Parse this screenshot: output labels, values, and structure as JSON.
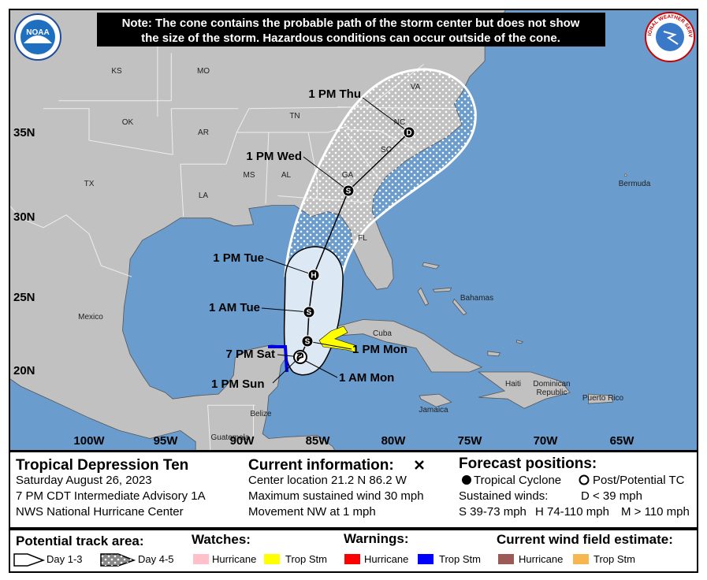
{
  "header": {
    "note_line1": "Note: The cone contains the probable path of the storm center but does not show",
    "note_line2": "the size of the storm. Hazardous conditions can occur outside of the cone.",
    "noaa_logo": "NOAA",
    "nws_logo": "NATIONAL WEATHER SERVICE"
  },
  "map": {
    "lon_labels": [
      "100W",
      "95W",
      "90W",
      "85W",
      "80W",
      "75W",
      "70W",
      "65W"
    ],
    "lat_labels": [
      "35N",
      "30N",
      "25N",
      "20N"
    ],
    "places": [
      "KS",
      "MO",
      "OK",
      "AR",
      "TN",
      "MS",
      "AL",
      "GA",
      "SC",
      "NC",
      "VA",
      "LA",
      "TX",
      "FL",
      "Mexico",
      "Bermuda",
      "Bahamas",
      "Cuba",
      "Jamaica",
      "Haiti",
      "Dominican",
      "Republic",
      "Puerto Rico",
      "Belize",
      "Guatemala"
    ],
    "forecast_points": [
      {
        "label": "1 PM Thu",
        "symbol": "D"
      },
      {
        "label": "1 PM Wed",
        "symbol": "S"
      },
      {
        "label": "1 PM Tue",
        "symbol": "H"
      },
      {
        "label": "1 AM Tue",
        "symbol": "S"
      },
      {
        "label": "1 PM Mon",
        "symbol": "S"
      },
      {
        "label": "1 AM Mon"
      },
      {
        "label": "1 PM Sun"
      },
      {
        "label": "7 PM Sat"
      }
    ]
  },
  "info": {
    "storm_name": "Tropical Depression Ten",
    "date": "Saturday August 26, 2023",
    "advisory": "7 PM CDT Intermediate Advisory 1A",
    "center": "NWS National Hurricane Center",
    "current_title": "Current information:",
    "location": "Center location 21.2 N 86.2 W",
    "wind": "Maximum sustained wind 30 mph",
    "movement": "Movement NW at 1 mph",
    "forecast_title": "Forecast positions:",
    "tropical_cyclone": "Tropical Cyclone",
    "post_tc": "Post/Potential TC",
    "sustained_winds": "Sustained winds:",
    "d": "D < 39 mph",
    "s": "S 39-73 mph",
    "h": "H 74-110 mph",
    "m": "M > 110 mph"
  },
  "legend": {
    "track_title": "Potential track area:",
    "day13": "Day 1-3",
    "day45": "Day 4-5",
    "watches_title": "Watches:",
    "watch_hurricane": "Hurricane",
    "watch_tropstm": "Trop Stm",
    "warnings_title": "Warnings:",
    "warning_hurricane": "Hurricane",
    "warning_tropstm": "Trop Stm",
    "wind_title": "Current wind field estimate:",
    "wind_hurricane": "Hurricane",
    "wind_tropstm": "Trop Stm"
  }
}
